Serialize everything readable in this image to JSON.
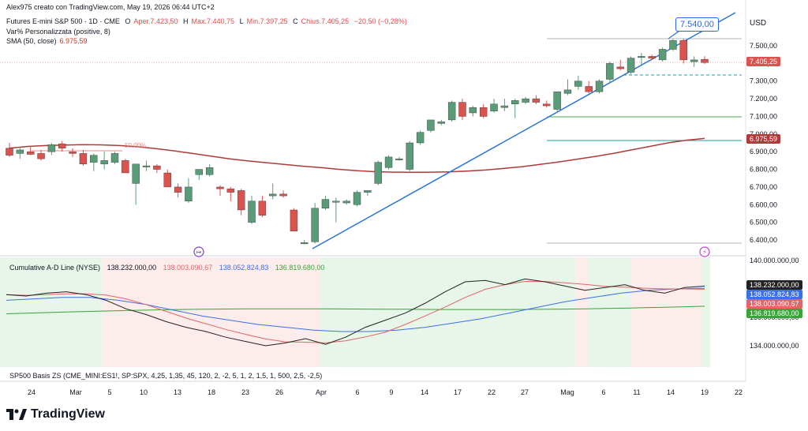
{
  "header": {
    "author_line": "Alex975 creato con TradingView.com, May 19, 2026 06:44 UTC+2",
    "symbol": "Futures E-mini S&P 500 · 1D · CME",
    "open_label": "O",
    "open": "Aper.7.423,50",
    "high_label": "H",
    "high": "Max.7.440,75",
    "low_label": "L",
    "low": "Min.7.397,25",
    "close_label": "C",
    "close": "Chius.7.405,25",
    "change": "−20,50 (−0,28%)",
    "indicator1": "Var% Personalizzata (positive, 8)",
    "sma_label": "SMA (50, close)",
    "sma_value": "6.975,59"
  },
  "currency": "USD",
  "callout_price": "7.540,00",
  "fib_label": "50,00%",
  "last_price_tag": "7.405,25",
  "sma_price_tag": "6.975,59",
  "indicator": {
    "name": "Cumulative A-D Line (NYSE)",
    "v1": "138.232.000,00",
    "v2": "138.003.090,67",
    "v3": "138.052.824,83",
    "v4": "136.819.680,00",
    "tags": [
      "138.232.000,00",
      "138.052.824,83",
      "138.003.090,67",
      "136.819.680,00"
    ],
    "axis_labels": [
      "140.000.000,00",
      "136.000.000,00",
      "134.000.000,00"
    ]
  },
  "basis_line": "SP500 Basis ZS (CME_MINI:ES1!, SP:SPX, 4,25, 1,35, 45, 120, 2, -2, 5, 1, 2, 1,5, 1, 500, 2,5, -2,5)",
  "logo_text": "TradingView",
  "colors": {
    "up": "#5b9c78",
    "down": "#d9534f",
    "sma": "#b03a3a",
    "trend": "#2a73d9",
    "green_line": "#4caf50",
    "teal_line": "#17a2a2",
    "ad_black": "#222222",
    "ad_blue": "#3d6fe6",
    "ad_red": "#e06666",
    "ad_green": "#3aa33a"
  },
  "chart_data": {
    "type": "candlestick",
    "y_axis": {
      "ticks": [
        7500,
        7400,
        7300,
        7200,
        7100,
        7000,
        6900,
        6800,
        6700,
        6600,
        6500,
        6400
      ],
      "tick_labels": [
        "7.500,00",
        "7.400,00",
        "7.300,00",
        "7.200,00",
        "7.100,00",
        "7.000,00",
        "6.900,00",
        "6.800,00",
        "6.700,00",
        "6.600,00",
        "6.500,00",
        "6.400,00"
      ]
    },
    "x_axis": {
      "tick_labels": [
        "24",
        "Mar",
        "5",
        "10",
        "13",
        "18",
        "23",
        "26",
        "Apr",
        "6",
        "9",
        "14",
        "17",
        "22",
        "27",
        "Mag",
        "6",
        "11",
        "14",
        "19",
        "22"
      ]
    },
    "candles": [
      {
        "o": 6920,
        "h": 6950,
        "l": 6870,
        "c": 6880
      },
      {
        "o": 6890,
        "h": 6930,
        "l": 6860,
        "c": 6910
      },
      {
        "o": 6900,
        "h": 6930,
        "l": 6880,
        "c": 6885
      },
      {
        "o": 6890,
        "h": 6910,
        "l": 6850,
        "c": 6860
      },
      {
        "o": 6900,
        "h": 6950,
        "l": 6880,
        "c": 6940
      },
      {
        "o": 6945,
        "h": 6960,
        "l": 6900,
        "c": 6920
      },
      {
        "o": 6900,
        "h": 6920,
        "l": 6870,
        "c": 6890
      },
      {
        "o": 6890,
        "h": 6910,
        "l": 6820,
        "c": 6830
      },
      {
        "o": 6840,
        "h": 6890,
        "l": 6790,
        "c": 6880
      },
      {
        "o": 6830,
        "h": 6900,
        "l": 6800,
        "c": 6850
      },
      {
        "o": 6840,
        "h": 6900,
        "l": 6830,
        "c": 6890
      },
      {
        "o": 6850,
        "h": 6860,
        "l": 6780,
        "c": 6780
      },
      {
        "o": 6720,
        "h": 6830,
        "l": 6600,
        "c": 6830
      },
      {
        "o": 6820,
        "h": 6850,
        "l": 6790,
        "c": 6820
      },
      {
        "o": 6820,
        "h": 6830,
        "l": 6780,
        "c": 6800
      },
      {
        "o": 6780,
        "h": 6800,
        "l": 6700,
        "c": 6700
      },
      {
        "o": 6700,
        "h": 6720,
        "l": 6640,
        "c": 6670
      },
      {
        "o": 6620,
        "h": 6750,
        "l": 6610,
        "c": 6700
      },
      {
        "o": 6770,
        "h": 6800,
        "l": 6740,
        "c": 6800
      },
      {
        "o": 6770,
        "h": 6830,
        "l": 6760,
        "c": 6810
      },
      {
        "o": 6700,
        "h": 6710,
        "l": 6650,
        "c": 6690
      },
      {
        "o": 6690,
        "h": 6700,
        "l": 6620,
        "c": 6670
      },
      {
        "o": 6680,
        "h": 6690,
        "l": 6540,
        "c": 6570
      },
      {
        "o": 6500,
        "h": 6650,
        "l": 6490,
        "c": 6620
      },
      {
        "o": 6620,
        "h": 6650,
        "l": 6530,
        "c": 6540
      },
      {
        "o": 6650,
        "h": 6720,
        "l": 6630,
        "c": 6660
      },
      {
        "o": 6660,
        "h": 6680,
        "l": 6640,
        "c": 6650
      },
      {
        "o": 6570,
        "h": 6580,
        "l": 6450,
        "c": 6450
      },
      {
        "o": 6385,
        "h": 6400,
        "l": 6375,
        "c": 6385
      },
      {
        "o": 6390,
        "h": 6610,
        "l": 6380,
        "c": 6580
      },
      {
        "o": 6580,
        "h": 6650,
        "l": 6570,
        "c": 6630
      },
      {
        "o": 6620,
        "h": 6640,
        "l": 6500,
        "c": 6620
      },
      {
        "o": 6610,
        "h": 6630,
        "l": 6600,
        "c": 6620
      },
      {
        "o": 6600,
        "h": 6680,
        "l": 6590,
        "c": 6670
      },
      {
        "o": 6670,
        "h": 6680,
        "l": 6650,
        "c": 6680
      },
      {
        "o": 6720,
        "h": 6850,
        "l": 6710,
        "c": 6840
      },
      {
        "o": 6810,
        "h": 6880,
        "l": 6800,
        "c": 6870
      },
      {
        "o": 6860,
        "h": 6870,
        "l": 6850,
        "c": 6860
      },
      {
        "o": 6800,
        "h": 6960,
        "l": 6790,
        "c": 6950
      },
      {
        "o": 6950,
        "h": 7020,
        "l": 6940,
        "c": 7010
      },
      {
        "o": 7020,
        "h": 7080,
        "l": 7010,
        "c": 7080
      },
      {
        "o": 7060,
        "h": 7080,
        "l": 7050,
        "c": 7070
      },
      {
        "o": 7080,
        "h": 7190,
        "l": 7070,
        "c": 7180
      },
      {
        "o": 7180,
        "h": 7200,
        "l": 7080,
        "c": 7100
      },
      {
        "o": 7120,
        "h": 7160,
        "l": 7100,
        "c": 7150
      },
      {
        "o": 7150,
        "h": 7170,
        "l": 7090,
        "c": 7100
      },
      {
        "o": 7130,
        "h": 7200,
        "l": 7120,
        "c": 7170
      },
      {
        "o": 7150,
        "h": 7200,
        "l": 7130,
        "c": 7160
      },
      {
        "o": 7170,
        "h": 7200,
        "l": 7090,
        "c": 7190
      },
      {
        "o": 7180,
        "h": 7210,
        "l": 7170,
        "c": 7200
      },
      {
        "o": 7200,
        "h": 7220,
        "l": 7170,
        "c": 7180
      },
      {
        "o": 7170,
        "h": 7190,
        "l": 7150,
        "c": 7160
      },
      {
        "o": 7140,
        "h": 7240,
        "l": 7130,
        "c": 7240
      },
      {
        "o": 7230,
        "h": 7310,
        "l": 7220,
        "c": 7250
      },
      {
        "o": 7270,
        "h": 7330,
        "l": 7250,
        "c": 7300
      },
      {
        "o": 7270,
        "h": 7300,
        "l": 7230,
        "c": 7240
      },
      {
        "o": 7240,
        "h": 7310,
        "l": 7230,
        "c": 7300
      },
      {
        "o": 7310,
        "h": 7410,
        "l": 7290,
        "c": 7400
      },
      {
        "o": 7380,
        "h": 7420,
        "l": 7360,
        "c": 7370
      },
      {
        "o": 7350,
        "h": 7440,
        "l": 7340,
        "c": 7430
      },
      {
        "o": 7440,
        "h": 7460,
        "l": 7390,
        "c": 7440
      },
      {
        "o": 7440,
        "h": 7450,
        "l": 7420,
        "c": 7430
      },
      {
        "o": 7420,
        "h": 7490,
        "l": 7410,
        "c": 7480
      },
      {
        "o": 7480,
        "h": 7540,
        "l": 7470,
        "c": 7530
      },
      {
        "o": 7530,
        "h": 7540,
        "l": 7400,
        "c": 7420
      },
      {
        "o": 7410,
        "h": 7440,
        "l": 7380,
        "c": 7420
      },
      {
        "o": 7423.5,
        "h": 7440.75,
        "l": 7397.25,
        "c": 7405.25
      }
    ],
    "sma50": [
      6920,
      6930,
      6935,
      6938,
      6940,
      6939,
      6935,
      6928,
      6918,
      6905,
      6890,
      6875,
      6860,
      6848,
      6838,
      6828,
      6818,
      6810,
      6800,
      6792,
      6787,
      6784,
      6783,
      6784,
      6786,
      6790,
      6796,
      6805,
      6815,
      6828,
      6842,
      6857,
      6873,
      6890,
      6910,
      6930,
      6950,
      6965,
      6975.59
    ],
    "ad_line": {
      "black": [
        137.6,
        137.5,
        137.7,
        137.8,
        137.6,
        137.2,
        136.6,
        136.2,
        135.7,
        135.3,
        135.0,
        134.6,
        134.3,
        134.0,
        134.2,
        134.5,
        134.1,
        134.6,
        135.3,
        135.8,
        136.3,
        137.0,
        137.8,
        138.5,
        138.6,
        138.3,
        138.7,
        138.5,
        138.2,
        137.9,
        138.1,
        138.3,
        137.9,
        137.7,
        138.1,
        138.2
      ],
      "blue": [
        137.2,
        137.3,
        137.4,
        137.4,
        137.2,
        136.9,
        136.5,
        136.1,
        135.8,
        135.5,
        135.3,
        135.1,
        135.0,
        135.0,
        135.1,
        135.3,
        135.6,
        135.9,
        136.3,
        136.7,
        137.1,
        137.4,
        137.7,
        137.9,
        138.0,
        138.05
      ]
    }
  }
}
